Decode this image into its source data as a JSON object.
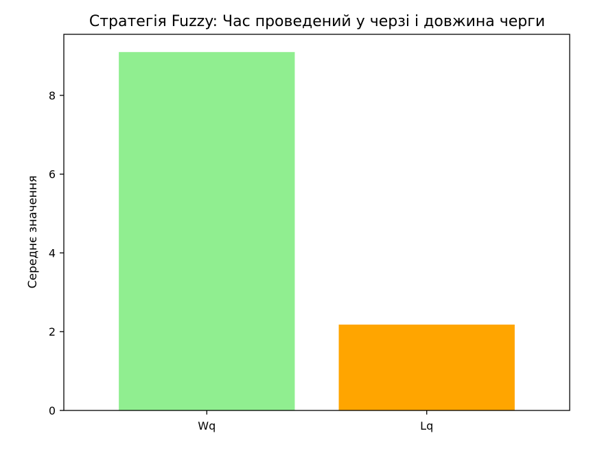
{
  "chart_data": {
    "type": "bar",
    "title": "Стратегія Fuzzy: Час проведений у черзі і довжина черги",
    "xlabel": "",
    "ylabel": "Середнє значення",
    "categories": [
      "Wq",
      "Lq"
    ],
    "values": [
      9.1,
      2.18
    ],
    "colors": [
      "#90ee90",
      "#ffa500"
    ],
    "ylim": [
      0,
      9.55
    ],
    "yticks": [
      0,
      2,
      4,
      6,
      8
    ],
    "grid": false
  }
}
